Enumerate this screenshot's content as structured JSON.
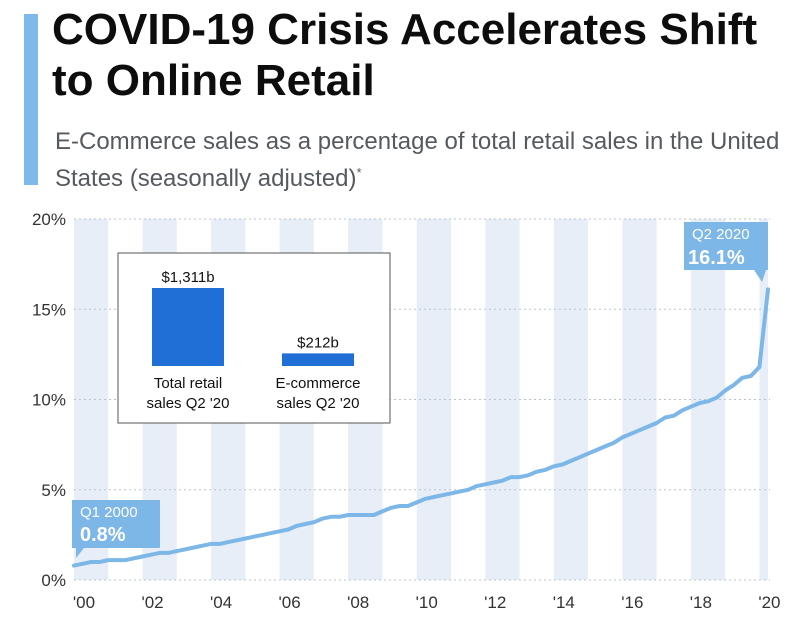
{
  "title": "COVID-19 Crisis Accelerates Shift to Online Retail",
  "subtitle": "E-Commerce sales as a percentage of total retail sales in the United States (seasonally adjusted)",
  "subtitle_note": "*",
  "colors": {
    "accent": "#7fb9ea",
    "line": "#7cb7e8",
    "bar": "#1f6fd6",
    "band": "#e8eef7"
  },
  "chart_data": {
    "type": "line",
    "title": "COVID-19 Crisis Accelerates Shift to Online Retail",
    "ylabel": "",
    "xlabel": "",
    "ylim": [
      0,
      20
    ],
    "y_ticks": [
      "0%",
      "5%",
      "10%",
      "15%",
      "20%"
    ],
    "x_ticks": [
      "'00",
      "'02",
      "'04",
      "'06",
      "'08",
      "'10",
      "'12",
      "'14",
      "'16",
      "'18",
      "'20"
    ],
    "series": [
      {
        "points": [
          [
            "2000-Q1",
            0.8
          ],
          [
            "2000-Q2",
            0.9
          ],
          [
            "2000-Q3",
            1.0
          ],
          [
            "2000-Q4",
            1.0
          ],
          [
            "2001-Q1",
            1.1
          ],
          [
            "2001-Q2",
            1.1
          ],
          [
            "2001-Q3",
            1.1
          ],
          [
            "2001-Q4",
            1.2
          ],
          [
            "2002-Q1",
            1.3
          ],
          [
            "2002-Q2",
            1.4
          ],
          [
            "2002-Q3",
            1.5
          ],
          [
            "2002-Q4",
            1.5
          ],
          [
            "2003-Q1",
            1.6
          ],
          [
            "2003-Q2",
            1.7
          ],
          [
            "2003-Q3",
            1.8
          ],
          [
            "2003-Q4",
            1.9
          ],
          [
            "2004-Q1",
            2.0
          ],
          [
            "2004-Q2",
            2.0
          ],
          [
            "2004-Q3",
            2.1
          ],
          [
            "2004-Q4",
            2.2
          ],
          [
            "2005-Q1",
            2.3
          ],
          [
            "2005-Q2",
            2.4
          ],
          [
            "2005-Q3",
            2.5
          ],
          [
            "2005-Q4",
            2.6
          ],
          [
            "2006-Q1",
            2.7
          ],
          [
            "2006-Q2",
            2.8
          ],
          [
            "2006-Q3",
            3.0
          ],
          [
            "2006-Q4",
            3.1
          ],
          [
            "2007-Q1",
            3.2
          ],
          [
            "2007-Q2",
            3.4
          ],
          [
            "2007-Q3",
            3.5
          ],
          [
            "2007-Q4",
            3.5
          ],
          [
            "2008-Q1",
            3.6
          ],
          [
            "2008-Q2",
            3.6
          ],
          [
            "2008-Q3",
            3.6
          ],
          [
            "2008-Q4",
            3.6
          ],
          [
            "2009-Q1",
            3.8
          ],
          [
            "2009-Q2",
            4.0
          ],
          [
            "2009-Q3",
            4.1
          ],
          [
            "2009-Q4",
            4.1
          ],
          [
            "2010-Q1",
            4.3
          ],
          [
            "2010-Q2",
            4.5
          ],
          [
            "2010-Q3",
            4.6
          ],
          [
            "2010-Q4",
            4.7
          ],
          [
            "2011-Q1",
            4.8
          ],
          [
            "2011-Q2",
            4.9
          ],
          [
            "2011-Q3",
            5.0
          ],
          [
            "2011-Q4",
            5.2
          ],
          [
            "2012-Q1",
            5.3
          ],
          [
            "2012-Q2",
            5.4
          ],
          [
            "2012-Q3",
            5.5
          ],
          [
            "2012-Q4",
            5.7
          ],
          [
            "2013-Q1",
            5.7
          ],
          [
            "2013-Q2",
            5.8
          ],
          [
            "2013-Q3",
            6.0
          ],
          [
            "2013-Q4",
            6.1
          ],
          [
            "2014-Q1",
            6.3
          ],
          [
            "2014-Q2",
            6.4
          ],
          [
            "2014-Q3",
            6.6
          ],
          [
            "2014-Q4",
            6.8
          ],
          [
            "2015-Q1",
            7.0
          ],
          [
            "2015-Q2",
            7.2
          ],
          [
            "2015-Q3",
            7.4
          ],
          [
            "2015-Q4",
            7.6
          ],
          [
            "2016-Q1",
            7.9
          ],
          [
            "2016-Q2",
            8.1
          ],
          [
            "2016-Q3",
            8.3
          ],
          [
            "2016-Q4",
            8.5
          ],
          [
            "2017-Q1",
            8.7
          ],
          [
            "2017-Q2",
            9.0
          ],
          [
            "2017-Q3",
            9.1
          ],
          [
            "2017-Q4",
            9.4
          ],
          [
            "2018-Q1",
            9.6
          ],
          [
            "2018-Q2",
            9.8
          ],
          [
            "2018-Q3",
            9.9
          ],
          [
            "2018-Q4",
            10.1
          ],
          [
            "2019-Q1",
            10.5
          ],
          [
            "2019-Q2",
            10.8
          ],
          [
            "2019-Q3",
            11.2
          ],
          [
            "2019-Q4",
            11.3
          ],
          [
            "2020-Q1",
            11.8
          ],
          [
            "2020-Q2",
            16.1
          ]
        ]
      }
    ],
    "annotations": [
      {
        "label": "Q1 2000",
        "value": "0.8%",
        "at": "2000-Q1"
      },
      {
        "label": "Q2 2020",
        "value": "16.1%",
        "at": "2020-Q2"
      }
    ],
    "inset": {
      "type": "bar",
      "categories": [
        "Total retail sales Q2 '20",
        "E-commerce sales Q2 '20"
      ],
      "category_lines": [
        [
          "Total retail",
          "sales Q2 '20"
        ],
        [
          "E-commerce",
          "sales Q2 '20"
        ]
      ],
      "values": [
        1311,
        212
      ],
      "value_labels": [
        "$1,311b",
        "$212b"
      ],
      "unit": "billion USD"
    }
  }
}
